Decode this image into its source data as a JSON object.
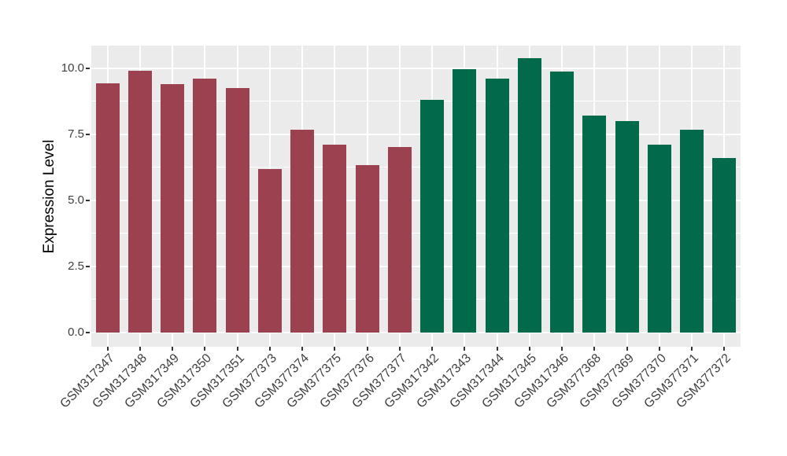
{
  "chart_data": {
    "type": "bar",
    "title": "",
    "xlabel": "",
    "ylabel": "Expression Level",
    "ylim": [
      -0.54,
      10.86
    ],
    "ytick_values": [
      0,
      2.5,
      5,
      7.5,
      10
    ],
    "ytick_labels": [
      "0.0",
      "2.5",
      "5.0",
      "7.5",
      "10.0"
    ],
    "minor_tick_values": [
      1.25,
      3.75,
      6.25,
      8.75
    ],
    "grid": "horizontal major+minor white lines, vertical white line at each category center",
    "legend_position": "none",
    "categories": [
      "GSM317347",
      "GSM317348",
      "GSM317349",
      "GSM317350",
      "GSM317351",
      "GSM377373",
      "GSM377374",
      "GSM377375",
      "GSM377376",
      "GSM377377",
      "GSM317342",
      "GSM317343",
      "GSM317344",
      "GSM317345",
      "GSM317346",
      "GSM377368",
      "GSM377369",
      "GSM377370",
      "GSM377371",
      "GSM377372"
    ],
    "values": [
      9.44,
      9.92,
      9.4,
      9.6,
      9.26,
      6.18,
      7.68,
      7.12,
      6.33,
      7.01,
      8.8,
      9.98,
      9.6,
      10.38,
      9.87,
      8.21,
      8.0,
      7.1,
      7.69,
      6.6
    ],
    "bar_groups": [
      "group1",
      "group1",
      "group1",
      "group1",
      "group1",
      "group1",
      "group1",
      "group1",
      "group1",
      "group1",
      "group2",
      "group2",
      "group2",
      "group2",
      "group2",
      "group2",
      "group2",
      "group2",
      "group2",
      "group2"
    ],
    "colors": {
      "group1": "#9C414F",
      "group2": "#006A4B",
      "panel_bg": "#EBEBEB",
      "grid": "#FFFFFF",
      "tick_mark": "#333333",
      "axis_text": "#404040",
      "axis_title": "#000000"
    }
  }
}
